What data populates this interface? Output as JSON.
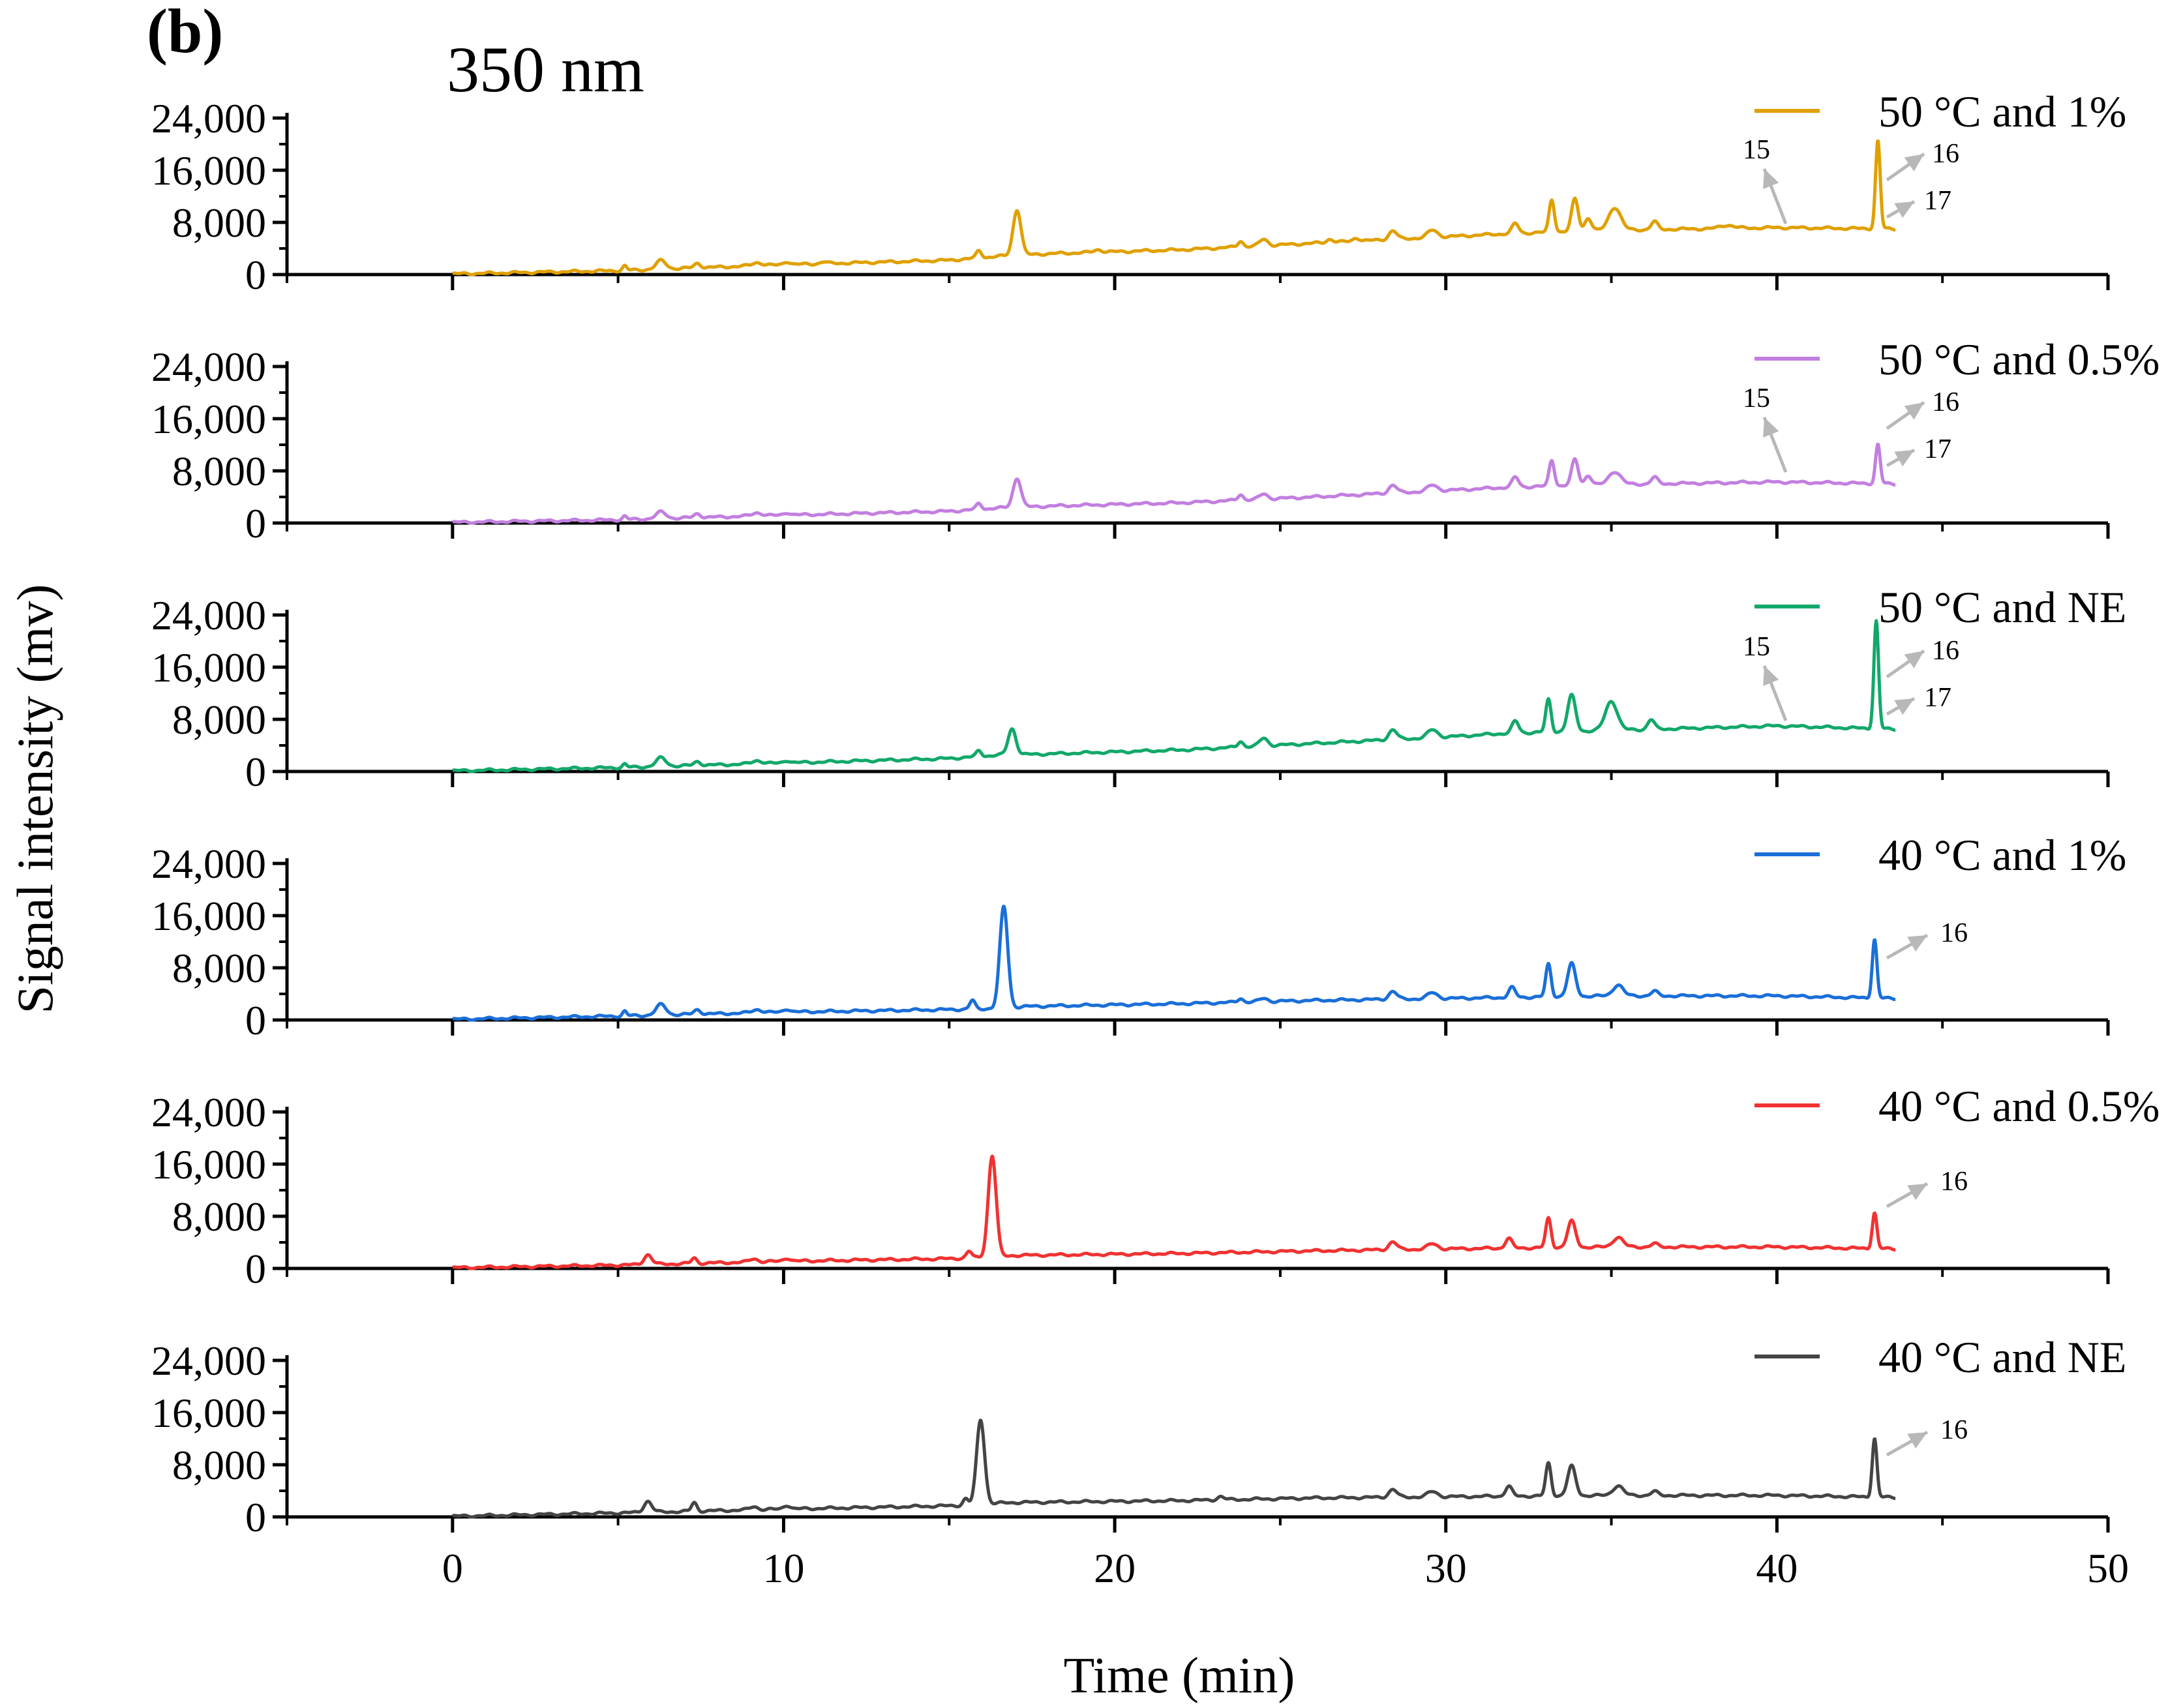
{
  "panel_label": "(b)",
  "wavelength_label": "350 nm",
  "colors": {
    "50C_1pct": "#E0A000",
    "50C_05pct": "#C27FE0",
    "50C_NE": "#12A86A",
    "40C_1pct": "#1A6FD8",
    "40C_05pct": "#F03232",
    "40C_NE": "#444444",
    "arrow": "#B8B8B8",
    "axis": "#000000"
  },
  "chart_data": {
    "type": "line",
    "title": "350 nm",
    "xlabel": "Time (min)",
    "ylabel": "Signal intensity (mv)",
    "xlim": [
      -5,
      50
    ],
    "x_ticks": [
      0,
      10,
      20,
      30,
      40,
      50
    ],
    "x_tick_labels": [
      "0",
      "10",
      "20",
      "30",
      "40",
      "50"
    ],
    "ylim": [
      0,
      24000
    ],
    "y_ticks": [
      0,
      8000,
      16000,
      24000
    ],
    "y_tick_labels": [
      "0",
      "8,000",
      "16,000",
      "24,000"
    ],
    "grid": false,
    "legend_position": "top-right of each panel",
    "series": [
      {
        "name": "50 °C and 1%",
        "color_key": "50C_1pct",
        "baseline": [
          [
            0,
            100
          ],
          [
            5,
            600
          ],
          [
            10,
            1500
          ],
          [
            15,
            2200
          ],
          [
            16.5,
            2800
          ],
          [
            18,
            3200
          ],
          [
            22,
            3800
          ],
          [
            26,
            4800
          ],
          [
            30,
            5800
          ],
          [
            32,
            6300
          ],
          [
            35,
            6800
          ],
          [
            40,
            7200
          ],
          [
            43.5,
            7000
          ]
        ],
        "peaks": [
          [
            5.2,
            700,
            0.06
          ],
          [
            6.3,
            1300,
            0.15
          ],
          [
            7.4,
            700,
            0.1
          ],
          [
            9.2,
            500,
            0.15
          ],
          [
            10.1,
            500,
            0.1
          ],
          [
            11.2,
            300,
            0.1
          ],
          [
            15.9,
            1100,
            0.08
          ],
          [
            17.05,
            7000,
            0.12
          ],
          [
            19.5,
            400,
            0.12
          ],
          [
            23.8,
            900,
            0.08
          ],
          [
            24.5,
            1000,
            0.12
          ],
          [
            26.5,
            500,
            0.1
          ],
          [
            27.3,
            500,
            0.1
          ],
          [
            28.4,
            1300,
            0.12
          ],
          [
            29.6,
            1100,
            0.15
          ],
          [
            32.1,
            1500,
            0.1
          ],
          [
            33.2,
            5000,
            0.08
          ],
          [
            33.9,
            5000,
            0.1
          ],
          [
            34.3,
            2000,
            0.1
          ],
          [
            35.1,
            3500,
            0.18
          ],
          [
            36.3,
            1200,
            0.1
          ],
          [
            38.5,
            500,
            0.2
          ],
          [
            43.05,
            13500,
            0.07
          ]
        ],
        "annotations": [
          "15",
          "16",
          "17"
        ]
      },
      {
        "name": "50 °C and 0.5%",
        "color_key": "50C_05pct",
        "baseline": [
          [
            0,
            100
          ],
          [
            5,
            500
          ],
          [
            10,
            1200
          ],
          [
            15,
            1800
          ],
          [
            16.5,
            2300
          ],
          [
            18,
            2600
          ],
          [
            22,
            3100
          ],
          [
            26,
            4000
          ],
          [
            30,
            5000
          ],
          [
            32,
            5500
          ],
          [
            35,
            5900
          ],
          [
            40,
            6300
          ],
          [
            43.5,
            6000
          ]
        ],
        "peaks": [
          [
            5.2,
            500,
            0.06
          ],
          [
            6.3,
            1000,
            0.15
          ],
          [
            7.4,
            600,
            0.1
          ],
          [
            9.2,
            500,
            0.15
          ],
          [
            10.1,
            400,
            0.1
          ],
          [
            15.9,
            900,
            0.08
          ],
          [
            17.05,
            4500,
            0.12
          ],
          [
            23.8,
            900,
            0.08
          ],
          [
            24.5,
            800,
            0.12
          ],
          [
            28.4,
            1200,
            0.12
          ],
          [
            29.6,
            900,
            0.15
          ],
          [
            32.1,
            1500,
            0.1
          ],
          [
            33.2,
            4000,
            0.08
          ],
          [
            33.9,
            4000,
            0.1
          ],
          [
            34.3,
            1500,
            0.1
          ],
          [
            35.1,
            2000,
            0.18
          ],
          [
            36.3,
            1000,
            0.1
          ],
          [
            43.05,
            6000,
            0.07
          ]
        ],
        "annotations": [
          "15",
          "16",
          "17"
        ]
      },
      {
        "name": "50 °C and NE",
        "color_key": "50C_NE",
        "baseline": [
          [
            0,
            100
          ],
          [
            5,
            600
          ],
          [
            10,
            1300
          ],
          [
            15,
            2000
          ],
          [
            16.5,
            2500
          ],
          [
            18,
            2700
          ],
          [
            22,
            3300
          ],
          [
            26,
            4300
          ],
          [
            30,
            5300
          ],
          [
            32,
            5900
          ],
          [
            35,
            6300
          ],
          [
            40,
            7000
          ],
          [
            43.5,
            6500
          ]
        ],
        "peaks": [
          [
            5.2,
            500,
            0.06
          ],
          [
            6.3,
            1300,
            0.15
          ],
          [
            7.4,
            600,
            0.1
          ],
          [
            9.2,
            500,
            0.15
          ],
          [
            10.1,
            400,
            0.1
          ],
          [
            15.9,
            900,
            0.08
          ],
          [
            16.9,
            4000,
            0.12
          ],
          [
            23.8,
            900,
            0.08
          ],
          [
            24.5,
            1200,
            0.12
          ],
          [
            28.4,
            1500,
            0.12
          ],
          [
            29.6,
            1200,
            0.15
          ],
          [
            32.1,
            1800,
            0.1
          ],
          [
            33.1,
            5000,
            0.08
          ],
          [
            33.8,
            5500,
            0.12
          ],
          [
            35,
            4500,
            0.18
          ],
          [
            36.2,
            1500,
            0.1
          ],
          [
            43.0,
            16500,
            0.07
          ]
        ],
        "annotations": [
          "15",
          "16",
          "17"
        ]
      },
      {
        "name": "40 °C and 1%",
        "color_key": "40C_1pct",
        "baseline": [
          [
            0,
            100
          ],
          [
            5,
            600
          ],
          [
            10,
            1200
          ],
          [
            15,
            1600
          ],
          [
            16,
            1700
          ],
          [
            17.5,
            2100
          ],
          [
            22,
            2500
          ],
          [
            26,
            3000
          ],
          [
            30,
            3300
          ],
          [
            35,
            3700
          ],
          [
            40,
            3700
          ],
          [
            43.5,
            3300
          ]
        ],
        "peaks": [
          [
            5.2,
            700,
            0.06
          ],
          [
            6.3,
            1600,
            0.15
          ],
          [
            7.4,
            700,
            0.1
          ],
          [
            9.2,
            500,
            0.15
          ],
          [
            10.1,
            500,
            0.1
          ],
          [
            15.7,
            1300,
            0.08
          ],
          [
            16.65,
            15500,
            0.12
          ],
          [
            23.8,
            600,
            0.08
          ],
          [
            24.5,
            500,
            0.12
          ],
          [
            28.4,
            1200,
            0.12
          ],
          [
            29.6,
            900,
            0.15
          ],
          [
            32.0,
            1500,
            0.1
          ],
          [
            33.1,
            5000,
            0.08
          ],
          [
            33.8,
            5000,
            0.12
          ],
          [
            35.2,
            1700,
            0.15
          ],
          [
            36.3,
            700,
            0.1
          ],
          [
            42.95,
            9000,
            0.07
          ]
        ],
        "annotations": [
          "16"
        ]
      },
      {
        "name": "40 °C and 0.5%",
        "color_key": "40C_05pct",
        "baseline": [
          [
            0,
            100
          ],
          [
            5,
            500
          ],
          [
            10,
            1100
          ],
          [
            15,
            1500
          ],
          [
            16,
            1700
          ],
          [
            17,
            2000
          ],
          [
            22,
            2300
          ],
          [
            26,
            2700
          ],
          [
            30,
            3000
          ],
          [
            35,
            3300
          ],
          [
            40,
            3300
          ],
          [
            43.5,
            3000
          ]
        ],
        "peaks": [
          [
            5.9,
            1500,
            0.12
          ],
          [
            7.3,
            800,
            0.08
          ],
          [
            9.1,
            500,
            0.12
          ],
          [
            10.1,
            500,
            0.1
          ],
          [
            15.6,
            1000,
            0.08
          ],
          [
            16.3,
            15500,
            0.12
          ],
          [
            28.4,
            1200,
            0.12
          ],
          [
            29.6,
            800,
            0.15
          ],
          [
            31.9,
            1500,
            0.1
          ],
          [
            33.1,
            4500,
            0.08
          ],
          [
            33.8,
            4000,
            0.12
          ],
          [
            35.2,
            1500,
            0.15
          ],
          [
            36.3,
            500,
            0.1
          ],
          [
            42.95,
            5500,
            0.07
          ]
        ],
        "annotations": [
          "16"
        ]
      },
      {
        "name": "40 °C and NE",
        "color_key": "40C_NE",
        "baseline": [
          [
            0,
            100
          ],
          [
            5,
            600
          ],
          [
            10,
            1200
          ],
          [
            15,
            1700
          ],
          [
            15.6,
            1800
          ],
          [
            16.8,
            2200
          ],
          [
            22,
            2500
          ],
          [
            26,
            2900
          ],
          [
            30,
            3100
          ],
          [
            35,
            3300
          ],
          [
            40,
            3300
          ],
          [
            43.5,
            3000
          ]
        ],
        "peaks": [
          [
            5.9,
            1700,
            0.12
          ],
          [
            7.3,
            1300,
            0.08
          ],
          [
            9.1,
            500,
            0.12
          ],
          [
            10.1,
            600,
            0.1
          ],
          [
            15.5,
            1000,
            0.08
          ],
          [
            15.95,
            13000,
            0.12
          ],
          [
            23.2,
            500,
            0.1
          ],
          [
            28.4,
            1200,
            0.12
          ],
          [
            29.6,
            800,
            0.15
          ],
          [
            31.9,
            1500,
            0.1
          ],
          [
            33.1,
            5000,
            0.08
          ],
          [
            33.8,
            4500,
            0.12
          ],
          [
            35.2,
            1500,
            0.15
          ],
          [
            36.3,
            600,
            0.1
          ],
          [
            42.95,
            9000,
            0.07
          ]
        ],
        "annotations": [
          "16"
        ]
      }
    ]
  }
}
